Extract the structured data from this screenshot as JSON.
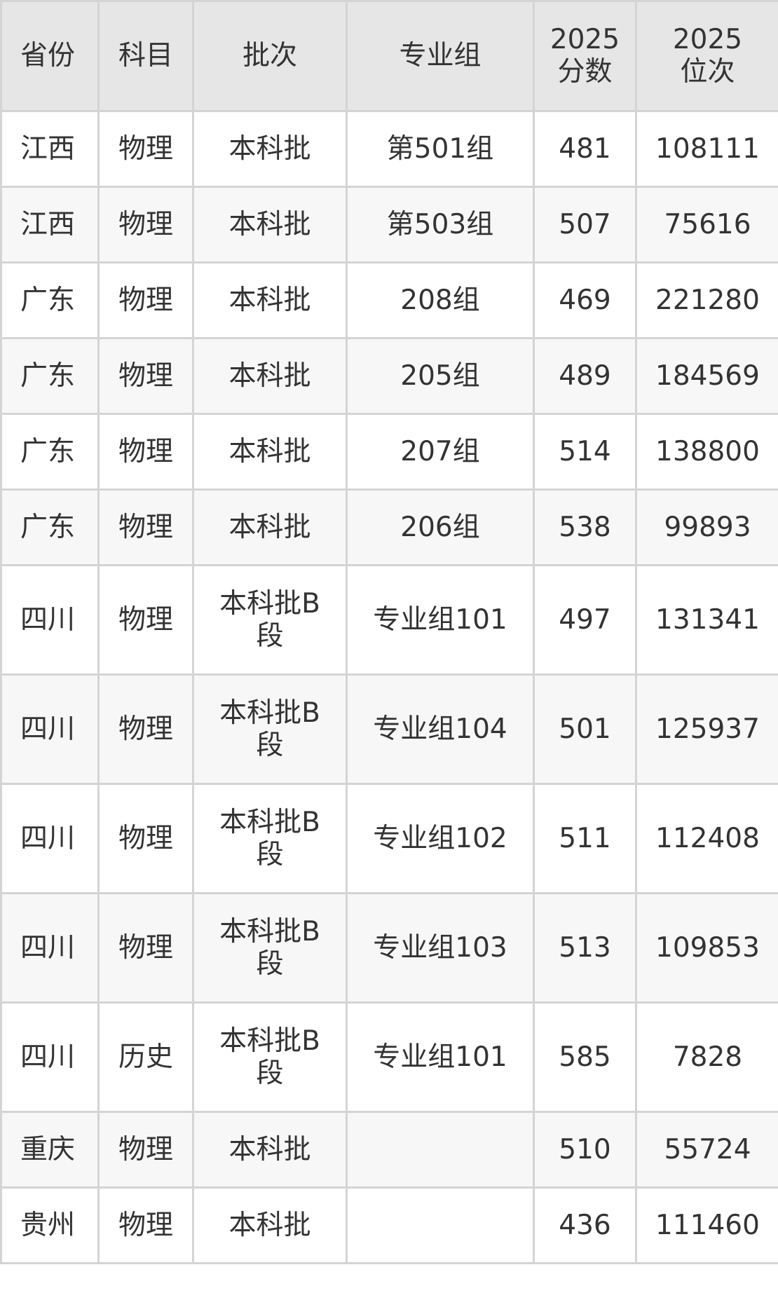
{
  "headers": [
    "省份",
    "科目",
    "批次",
    "专业组",
    "2025\n分数",
    "2025\n位次"
  ],
  "header_lines": [
    [
      "省份"
    ],
    [
      "科目"
    ],
    [
      "批次"
    ],
    [
      "专业组"
    ],
    [
      "2025",
      "分数"
    ],
    [
      "2025",
      "位次"
    ]
  ],
  "rows": [
    [
      "江西",
      "物理",
      "本科批",
      "第501组",
      "481",
      "108111"
    ],
    [
      "江西",
      "物理",
      "本科批",
      "第503组",
      "507",
      "75616"
    ],
    [
      "广东",
      "物理",
      "本科批",
      "208组",
      "469",
      "221280"
    ],
    [
      "广东",
      "物理",
      "本科批",
      "205组",
      "489",
      "184569"
    ],
    [
      "广东",
      "物理",
      "本科批",
      "207组",
      "514",
      "138800"
    ],
    [
      "广东",
      "物理",
      "本科批",
      "206组",
      "538",
      "99893"
    ],
    [
      "四川",
      "物理",
      "本科批B段",
      "专业组101",
      "497",
      "131341"
    ],
    [
      "四川",
      "物理",
      "本科批B段",
      "专业组104",
      "501",
      "125937"
    ],
    [
      "四川",
      "物理",
      "本科批B段",
      "专业组102",
      "511",
      "112408"
    ],
    [
      "四川",
      "物理",
      "本科批B段",
      "专业组103",
      "513",
      "109853"
    ],
    [
      "四川",
      "历史",
      "本科批B段",
      "专业组101",
      "585",
      "7828"
    ],
    [
      "重庆",
      "物理",
      "本科批",
      "",
      "510",
      "55724"
    ],
    [
      "贵州",
      "物理",
      "本科批",
      "",
      "436",
      "111460"
    ]
  ]
}
